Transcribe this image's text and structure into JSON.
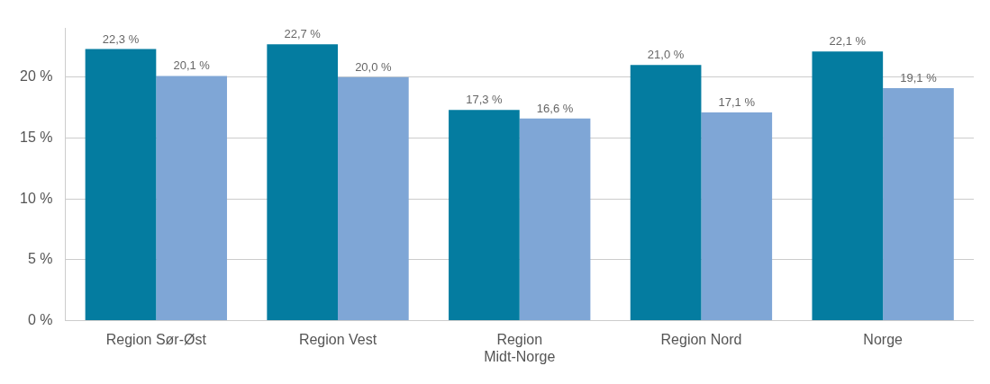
{
  "chart_data": {
    "type": "bar",
    "categories": [
      "Region Sør-Øst",
      "Region Vest",
      "Region Midt-Norge",
      "Region Nord",
      "Norge"
    ],
    "series": [
      {
        "color": "#047ca0",
        "values": [
          22.3,
          22.7,
          17.3,
          21.0,
          22.1
        ],
        "value_labels": [
          "22,3 %",
          "22,7 %",
          "17,3 %",
          "21,0 %",
          "22,1 %"
        ]
      },
      {
        "color": "#7fa6d6",
        "values": [
          20.1,
          20.0,
          16.6,
          17.1,
          19.1
        ],
        "value_labels": [
          "20,1 %",
          "20,0 %",
          "16,6 %",
          "17,1 %",
          "19,1 %"
        ]
      }
    ],
    "ylim": [
      0,
      24
    ],
    "yticks": [
      {
        "value": 0,
        "label": "0 %"
      },
      {
        "value": 5,
        "label": "5 %"
      },
      {
        "value": 10,
        "label": "10 %"
      },
      {
        "value": 15,
        "label": "15 %"
      },
      {
        "value": 20,
        "label": "20 %"
      }
    ],
    "grid": "y",
    "legend": false
  }
}
